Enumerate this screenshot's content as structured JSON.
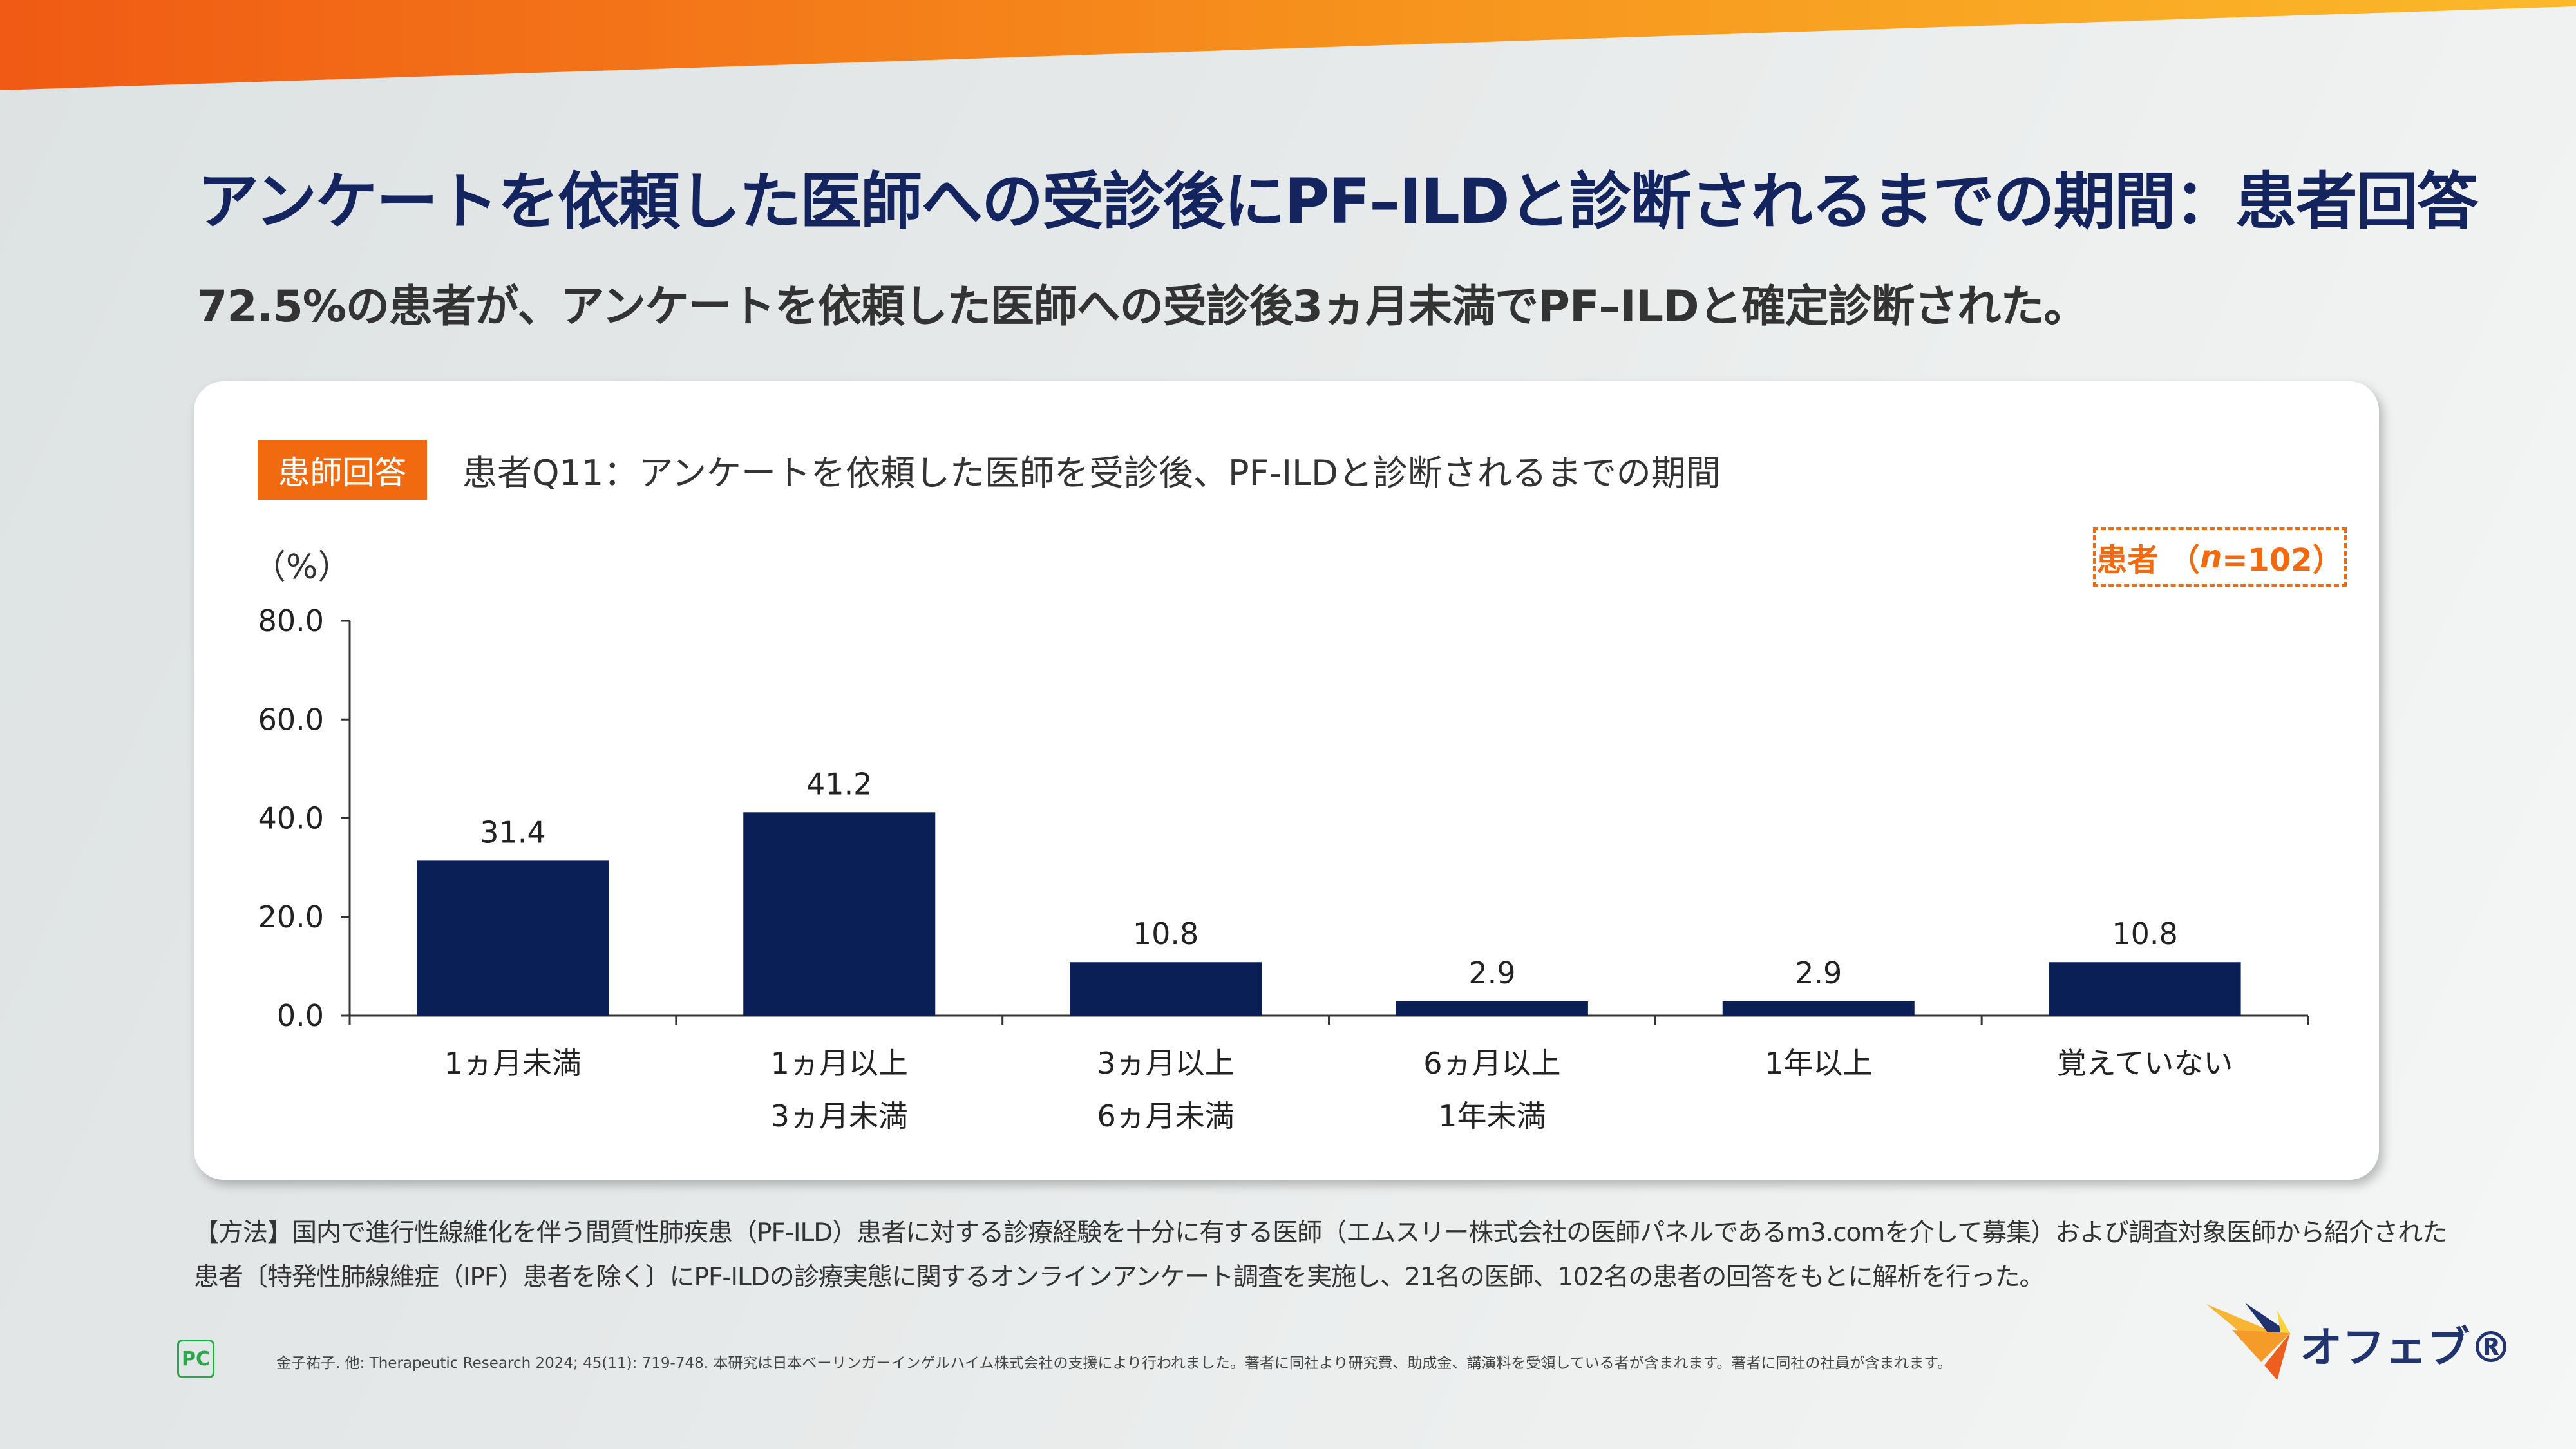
{
  "header": {
    "title": "アンケートを依頼した医師への受診後にPF–ILDと診断されるまでの期間：患者回答",
    "subtitle": "72.5%の患者が、アンケートを依頼した医師への受診後3ヵ月未満でPF–ILDと確定診断された。"
  },
  "card": {
    "tag": "患師回答",
    "question": "患者Q11：アンケートを依頼した医師を受診後、PF-ILDと診断されるまでの期間",
    "n_label_prefix": "患者 （",
    "n_label_n": "n",
    "n_label_suffix": "=102）"
  },
  "chart_data": {
    "type": "bar",
    "ylabel": "（%）",
    "ylim": [
      0,
      80
    ],
    "yticks": [
      "0.0",
      "20.0",
      "40.0",
      "60.0",
      "80.0"
    ],
    "categories": [
      [
        "1ヵ月未満"
      ],
      [
        "1ヵ月以上",
        "3ヵ月未満"
      ],
      [
        "3ヵ月以上",
        "6ヵ月未満"
      ],
      [
        "6ヵ月以上",
        "1年未満"
      ],
      [
        "1年以上"
      ],
      [
        "覚えていない"
      ]
    ],
    "values": [
      31.4,
      41.2,
      10.8,
      2.9,
      2.9,
      10.8
    ],
    "data_labels": [
      "31.4",
      "41.2",
      "10.8",
      "2.9",
      "2.9",
      "10.8"
    ],
    "grid": false,
    "bar_color": "#0b1f57"
  },
  "footer": {
    "method_line1": "【方法】国内で進行性線維化を伴う間質性肺疾患（PF-ILD）患者に対する診療経験を十分に有する医師（エムスリー株式会社の医師パネルであるm3.comを介して募集）および調査対象医師から紹介された",
    "method_line2": "患者〔特発性肺線維症（IPF）患者を除く〕にPF-ILDの診療実態に関するオンラインアンケート調査を実施し、21名の医師、102名の患者の回答をもとに解析を行った。",
    "citation": "金子祐子. 他: Therapeutic Research 2024; 45(11): 719-748.  本研究は日本ベーリンガーインゲルハイム株式会社の支援により行われました。著者に同社より研究費、助成金、講演料を受領している者が含まれます。著者に同社の社員が含まれます。",
    "pc_mark": "PC",
    "logo_text": "オフェブ®"
  },
  "colors": {
    "accent": "#f26a10",
    "navy": "#14245f"
  }
}
